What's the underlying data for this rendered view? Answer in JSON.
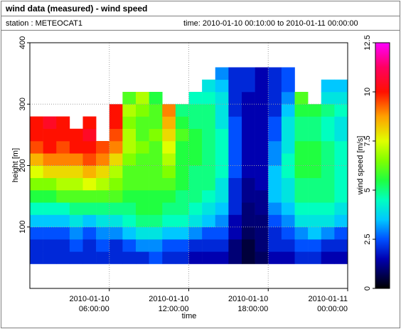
{
  "chart_data": {
    "type": "heatmap",
    "title": "wind data (measured) - wind speed",
    "station_label": "station : METEOCAT1",
    "time_label": "time: 2010-01-10 00:10:00 to 2010-01-11 00:00:00",
    "x_label": "time",
    "y_label": "height [m]",
    "z_label": "wind speed [m/s]",
    "xlim": [
      "2010-01-10 00:00:00",
      "2010-01-11 00:00:00"
    ],
    "xticks": [
      {
        "value": "2010-01-10 06:00:00",
        "label": [
          "2010-01-10",
          "06:00:00"
        ]
      },
      {
        "value": "2010-01-10 12:00:00",
        "label": [
          "2010-01-10",
          "12:00:00"
        ]
      },
      {
        "value": "2010-01-10 18:00:00",
        "label": [
          "2010-01-10",
          "18:00:00"
        ]
      },
      {
        "value": "2010-01-11 00:00:00",
        "label": [
          "2010-01-11",
          "00:00:00"
        ]
      }
    ],
    "ylim": [
      0,
      400
    ],
    "yticks": [
      100,
      200,
      300,
      400
    ],
    "zlim": [
      0,
      12.5
    ],
    "zticks": [
      0,
      2.5,
      5,
      7.5,
      10,
      12.5
    ],
    "grid": true,
    "colorscale": [
      [
        0,
        "#000000"
      ],
      [
        1.5,
        "#0000b0"
      ],
      [
        2.5,
        "#0050ff"
      ],
      [
        3.5,
        "#00c8ff"
      ],
      [
        4.5,
        "#00ffc0"
      ],
      [
        5.5,
        "#20ff40"
      ],
      [
        6.5,
        "#80ff00"
      ],
      [
        7.5,
        "#e0ff00"
      ],
      [
        8.75,
        "#ffa000"
      ],
      [
        10,
        "#ff1000"
      ],
      [
        11.25,
        "#ff0060"
      ],
      [
        12.5,
        "#ff00ff"
      ]
    ],
    "x": [
      "2010-01-10 00:00:00",
      "2010-01-10 01:00:00",
      "2010-01-10 02:00:00",
      "2010-01-10 03:00:00",
      "2010-01-10 04:00:00",
      "2010-01-10 05:00:00",
      "2010-01-10 06:00:00",
      "2010-01-10 07:00:00",
      "2010-01-10 08:00:00",
      "2010-01-10 09:00:00",
      "2010-01-10 10:00:00",
      "2010-01-10 11:00:00",
      "2010-01-10 12:00:00",
      "2010-01-10 13:00:00",
      "2010-01-10 14:00:00",
      "2010-01-10 15:00:00",
      "2010-01-10 16:00:00",
      "2010-01-10 17:00:00",
      "2010-01-10 18:00:00",
      "2010-01-10 19:00:00",
      "2010-01-10 20:00:00",
      "2010-01-10 21:00:00",
      "2010-01-10 22:00:00",
      "2010-01-10 23:00:00"
    ],
    "y": [
      40,
      60,
      80,
      100,
      120,
      140,
      160,
      180,
      200,
      220,
      240,
      260,
      280,
      300,
      320,
      340
    ],
    "values": [
      [
        2,
        2,
        2.5,
        3.5,
        4.5,
        5.5,
        6.5,
        7.5,
        8.5,
        9.5,
        10,
        10,
        null,
        null,
        null,
        null
      ],
      [
        2,
        2,
        2.5,
        3.5,
        4.5,
        5.5,
        6.5,
        8,
        9,
        10,
        10,
        10.5,
        null,
        null,
        null,
        null
      ],
      [
        2,
        2,
        2.5,
        3.5,
        4.5,
        6,
        7,
        8,
        9,
        9.5,
        10,
        10,
        null,
        null,
        null,
        null
      ],
      [
        2,
        2.5,
        3,
        4,
        5,
        6,
        7,
        8,
        9,
        10,
        10,
        null,
        null,
        null,
        null,
        null
      ],
      [
        2,
        2,
        2.5,
        3.5,
        5,
        6,
        7.5,
        8.5,
        9.5,
        10,
        10.5,
        10,
        null,
        null,
        null,
        null
      ],
      [
        2,
        2.5,
        3,
        4,
        5,
        6,
        7,
        8,
        9,
        9.5,
        null,
        null,
        null,
        null,
        null,
        null
      ],
      [
        2,
        2,
        3,
        4,
        5,
        6,
        6.5,
        7,
        8,
        9,
        9.5,
        10,
        10,
        null,
        null,
        null
      ],
      [
        2,
        2.5,
        3.5,
        4.5,
        5,
        5.5,
        6,
        6,
        6.5,
        7,
        7,
        6.5,
        7,
        6,
        null,
        null
      ],
      [
        2,
        3,
        4,
        5,
        5.5,
        5.5,
        6,
        6,
        6,
        6.5,
        6,
        6,
        6.5,
        7,
        null,
        null
      ],
      [
        2.5,
        3,
        4,
        5,
        5.5,
        5.5,
        6,
        6,
        6,
        6,
        6.5,
        6,
        6,
        5.5,
        null,
        null
      ],
      [
        2,
        2.5,
        3.5,
        4.5,
        5,
        5.5,
        6,
        6.5,
        7,
        7.5,
        8,
        8.5,
        9,
        null,
        null,
        null
      ],
      [
        2,
        2.5,
        3.5,
        4.5,
        5,
        5,
        5.5,
        5.5,
        5.5,
        5.5,
        6,
        5.5,
        5,
        null,
        null,
        null
      ],
      [
        1.5,
        2,
        3,
        4,
        4.5,
        5,
        5,
        5,
        5.5,
        5.5,
        5.5,
        5,
        5,
        4.5,
        null,
        null
      ],
      [
        1.5,
        2,
        2.5,
        3.5,
        4,
        4.5,
        5,
        5,
        5,
        5,
        5,
        5,
        5,
        4.5,
        4,
        null
      ],
      [
        1.5,
        2,
        2.5,
        3,
        3.5,
        4,
        4,
        4.5,
        4.5,
        4.5,
        4.5,
        4,
        4,
        4,
        3.5,
        3
      ],
      [
        1,
        1,
        1.5,
        1.5,
        2,
        2,
        2,
        2.5,
        2.5,
        2.5,
        2.5,
        2.5,
        2,
        2,
        2,
        2
      ],
      [
        0.5,
        0.5,
        0.8,
        1,
        1,
        1.2,
        1.2,
        1.5,
        1.5,
        1.5,
        1.5,
        1.5,
        1.5,
        1.5,
        2,
        2
      ],
      [
        0.8,
        1,
        1,
        1,
        1.2,
        1.2,
        1.5,
        1.5,
        1.5,
        1.5,
        1.5,
        1.5,
        1.5,
        1.5,
        1.5,
        1.5
      ],
      [
        1.5,
        2,
        2,
        2.5,
        3,
        3.5,
        3.5,
        3.5,
        3,
        3,
        2.5,
        2.5,
        2,
        2,
        2,
        2
      ],
      [
        1.5,
        2,
        2.5,
        3,
        3.5,
        4,
        4,
        4.5,
        4.5,
        4,
        4,
        4,
        3.5,
        3,
        2.5,
        2.5
      ],
      [
        2,
        2.5,
        3,
        4,
        4.5,
        5,
        5,
        5.5,
        5.5,
        5.5,
        5,
        5,
        5.5,
        6,
        null,
        null
      ],
      [
        2,
        2.5,
        3.5,
        4,
        4.5,
        5,
        5,
        5.5,
        5.5,
        5.5,
        5,
        5,
        5.5,
        null,
        null,
        null
      ],
      [
        1.5,
        2,
        3,
        4,
        4.5,
        5,
        5,
        5,
        5,
        5,
        4.5,
        4.5,
        5,
        4,
        3.5,
        null
      ],
      [
        1.5,
        2,
        2.5,
        3.5,
        4,
        4.5,
        4.5,
        4.5,
        4.5,
        4.5,
        4,
        4,
        4.5,
        4,
        3.5,
        null
      ]
    ]
  }
}
